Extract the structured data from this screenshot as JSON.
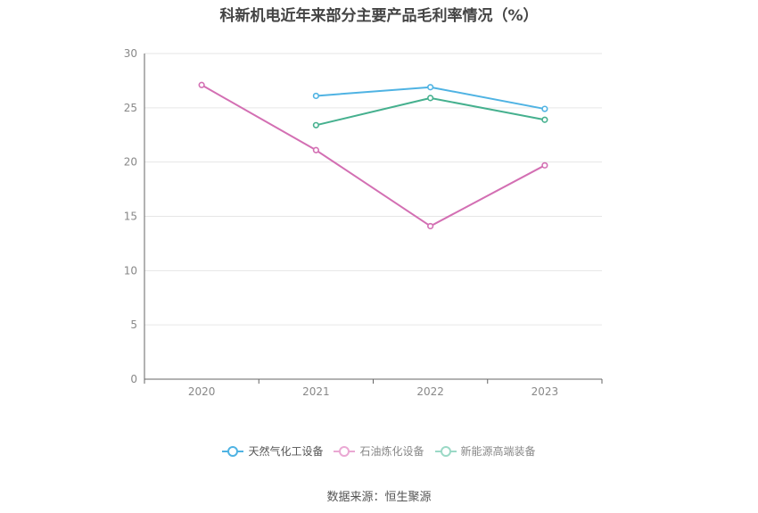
{
  "chart_data": {
    "type": "line",
    "title": "科新机电近年来部分主要产品毛利率情况（%）",
    "categories": [
      "2020",
      "2021",
      "2022",
      "2023"
    ],
    "ylim": [
      0,
      30
    ],
    "yticks": [
      0,
      5,
      10,
      15,
      20,
      25,
      30
    ],
    "grid": true,
    "legend_position": "bottom",
    "series": [
      {
        "name": "天然气化工设备",
        "color": "#4fb3e3",
        "values": [
          null,
          26.1,
          26.9,
          24.9
        ]
      },
      {
        "name": "石油炼化设备",
        "color": "#d36fb3",
        "values": [
          27.1,
          21.1,
          14.1,
          19.7
        ]
      },
      {
        "name": "新能源高端装备",
        "color": "#45b08e",
        "values": [
          null,
          23.4,
          25.9,
          23.9
        ]
      }
    ],
    "legend_colors": [
      "#4fb3e3",
      "#eaa8d3",
      "#9bd9c6"
    ],
    "source": "数据来源：恒生聚源"
  }
}
